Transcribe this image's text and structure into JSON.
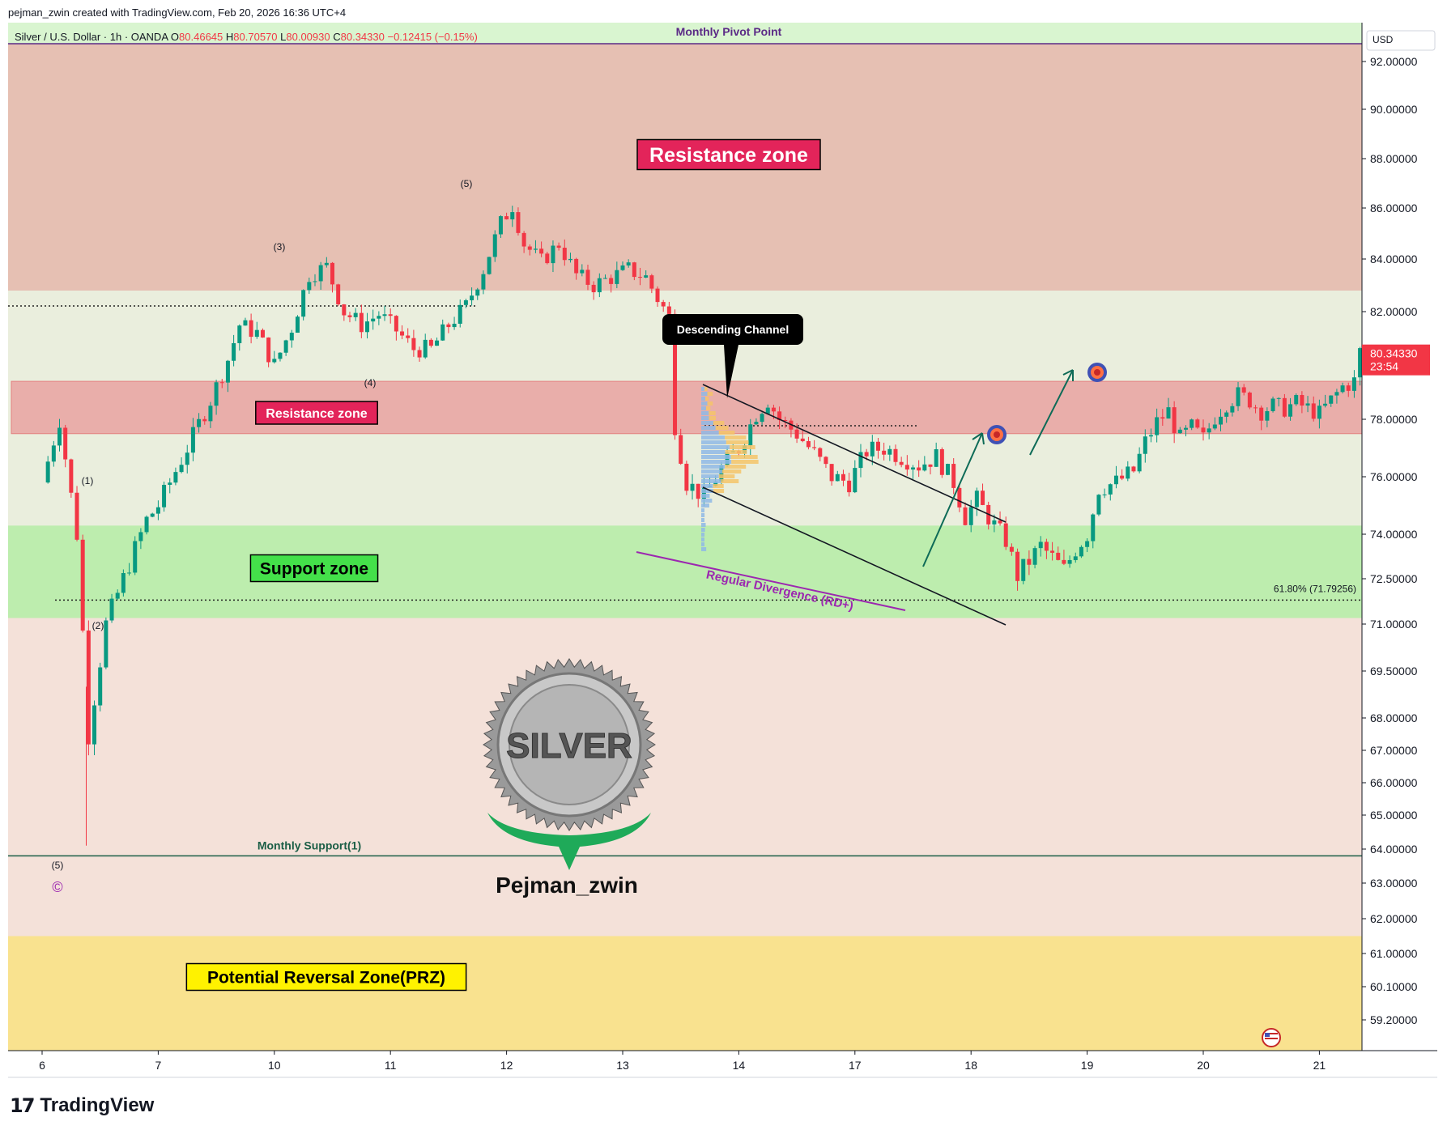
{
  "header": {
    "author_line": "pejman_zwin created with TradingView.com, Feb 20, 2026 16:36 UTC+4",
    "symbol": "Silver / U.S. Dollar · 1h · OANDA",
    "o_label": "O",
    "o_value": "80.46645",
    "h_label": "H",
    "h_value": "80.70570",
    "l_label": "L",
    "l_value": "80.00930",
    "c_label": "C",
    "c_value": "80.34330",
    "change": "−0.12415 (−0.15%)"
  },
  "currency_label": "USD",
  "price_tag": {
    "price": "80.34330",
    "countdown": "23:54"
  },
  "footer": {
    "brand": "TradingView"
  },
  "colors": {
    "resistance_bg": "#e6c0b3",
    "neutral_bg": "#eaeedd",
    "inner_resistance": "#e9aeaa",
    "support_bg": "#bdedae",
    "lower_bg": "#f4e1d9",
    "prz_bg": "#f9e28f",
    "pivot_band": "#d9f5d0",
    "up": "#089981",
    "down": "#f23645",
    "label_red": "#e3245a",
    "label_green": "#44e04a",
    "label_yellow": "#fff200",
    "divergence": "#9c27b0"
  },
  "annotations": {
    "monthly_pivot": "Monthly Pivot Point",
    "resistance_zone_big": "Resistance zone",
    "resistance_zone_small": "Resistance zone",
    "support_zone": "Support zone",
    "prz": "Potential Reversal Zone(PRZ)",
    "descending_channel": "Descending Channel",
    "regular_divergence": "Regular Divergence (RD+)",
    "fib_label": "61.80% (71.79256)",
    "monthly_support": "Monthly Support(1)",
    "logo_text": "SILVER",
    "signature": "Pejman_zwin",
    "wave_1": "(1)",
    "wave_2": "(2)",
    "wave_3": "(3)",
    "wave_4": "(4)",
    "wave_5_top": "(5)",
    "wave_5_bottom": "(5)",
    "copyright": "©"
  },
  "chart_data": {
    "type": "candlestick",
    "title": "Silver / U.S. Dollar · 1h · OANDA",
    "ylim": [
      58.4,
      93.2
    ],
    "y_ticks": [
      "92.00000",
      "90.00000",
      "88.00000",
      "86.00000",
      "84.00000",
      "82.00000",
      "80.00000",
      "78.00000",
      "76.00000",
      "74.00000",
      "72.50000",
      "71.00000",
      "69.50000",
      "68.00000",
      "67.00000",
      "66.00000",
      "65.00000",
      "64.00000",
      "63.00000",
      "62.00000",
      "61.00000",
      "60.10000",
      "59.20000"
    ],
    "y_tick_values": [
      92,
      90,
      88,
      86,
      84,
      82,
      80,
      78,
      76,
      74,
      72.5,
      71,
      69.5,
      68,
      67,
      66,
      65,
      64,
      63,
      62,
      61,
      60.1,
      59.2
    ],
    "x_ticks": [
      "6",
      "7",
      "10",
      "11",
      "12",
      "13",
      "14",
      "17",
      "18",
      "19",
      "20",
      "21"
    ],
    "x_tick_positions": [
      0,
      1,
      2,
      3,
      4,
      5,
      6,
      7,
      8,
      9,
      10,
      11
    ],
    "zones": [
      {
        "name": "Resistance zone",
        "from": 82.8,
        "to": 93.2
      },
      {
        "name": "Resistance zone",
        "from": 77.5,
        "to": 79.4
      },
      {
        "name": "Support zone",
        "from": 71.2,
        "to": 74.3
      },
      {
        "name": "Potential Reversal Zone(PRZ)",
        "from": 58.4,
        "to": 61.5
      }
    ],
    "levels": [
      {
        "name": "Monthly Pivot Point",
        "value": 92.5
      },
      {
        "name": "Monthly Support(1)",
        "value": 63.8
      },
      {
        "name": "61.80% (71.79256)",
        "value": 71.79256
      }
    ],
    "close_path": [
      [
        0.0,
        75.8
      ],
      [
        0.15,
        78.0
      ],
      [
        0.3,
        74.0
      ],
      [
        0.4,
        67.5
      ],
      [
        0.55,
        71.0
      ],
      [
        0.75,
        73.0
      ],
      [
        0.9,
        74.5
      ],
      [
        1.0,
        75.0
      ],
      [
        1.15,
        76.2
      ],
      [
        1.3,
        77.4
      ],
      [
        1.45,
        78.7
      ],
      [
        1.6,
        80.2
      ],
      [
        1.7,
        81.5
      ],
      [
        1.85,
        81.2
      ],
      [
        2.0,
        80.0
      ],
      [
        2.15,
        81.4
      ],
      [
        2.3,
        83.4
      ],
      [
        2.45,
        83.7
      ],
      [
        2.6,
        82.0
      ],
      [
        2.75,
        81.5
      ],
      [
        2.9,
        81.9
      ],
      [
        3.05,
        81.3
      ],
      [
        3.2,
        80.6
      ],
      [
        3.35,
        80.6
      ],
      [
        3.5,
        81.5
      ],
      [
        3.65,
        82.2
      ],
      [
        3.8,
        83.6
      ],
      [
        3.95,
        85.4
      ],
      [
        4.05,
        86.1
      ],
      [
        4.15,
        84.6
      ],
      [
        4.3,
        83.9
      ],
      [
        4.45,
        84.6
      ],
      [
        4.6,
        83.4
      ],
      [
        4.75,
        83.0
      ],
      [
        4.9,
        83.3
      ],
      [
        5.05,
        83.6
      ],
      [
        5.2,
        83.3
      ],
      [
        5.3,
        82.5
      ],
      [
        5.4,
        81.8
      ],
      [
        5.45,
        77.8
      ],
      [
        5.55,
        75.8
      ],
      [
        5.7,
        75.3
      ],
      [
        5.85,
        76.3
      ],
      [
        6.0,
        77.0
      ],
      [
        6.15,
        78.2
      ],
      [
        6.25,
        78.7
      ],
      [
        6.35,
        78.0
      ],
      [
        6.5,
        77.5
      ],
      [
        6.65,
        76.8
      ],
      [
        6.8,
        76.0
      ],
      [
        6.95,
        75.8
      ],
      [
        7.1,
        76.9
      ],
      [
        7.25,
        77.0
      ],
      [
        7.4,
        76.7
      ],
      [
        7.55,
        76.4
      ],
      [
        7.7,
        76.7
      ],
      [
        7.85,
        75.8
      ],
      [
        7.95,
        74.6
      ],
      [
        8.05,
        75.2
      ],
      [
        8.2,
        74.3
      ],
      [
        8.3,
        73.8
      ],
      [
        8.4,
        72.6
      ],
      [
        8.5,
        73.1
      ],
      [
        8.6,
        73.6
      ],
      [
        8.7,
        73.2
      ],
      [
        8.8,
        72.8
      ],
      [
        8.9,
        73.5
      ],
      [
        9.0,
        74.0
      ],
      [
        9.1,
        75.6
      ],
      [
        9.25,
        75.8
      ],
      [
        9.4,
        76.2
      ],
      [
        9.5,
        77.2
      ],
      [
        9.6,
        77.9
      ],
      [
        9.7,
        78.3
      ],
      [
        9.8,
        77.3
      ],
      [
        9.9,
        77.7
      ],
      [
        10.0,
        77.3
      ],
      [
        10.1,
        78.1
      ],
      [
        10.2,
        78.6
      ],
      [
        10.3,
        78.9
      ],
      [
        10.4,
        78.7
      ],
      [
        10.5,
        78.3
      ],
      [
        10.6,
        78.5
      ],
      [
        10.7,
        78.4
      ],
      [
        10.8,
        78.6
      ],
      [
        10.9,
        78.4
      ],
      [
        11.0,
        78.2
      ],
      [
        11.1,
        78.7
      ],
      [
        11.2,
        79.2
      ],
      [
        11.3,
        79.4
      ],
      [
        11.35,
        80.5
      ],
      [
        11.45,
        80.8
      ],
      [
        11.55,
        80.34
      ]
    ],
    "price_now": 80.3433
  }
}
